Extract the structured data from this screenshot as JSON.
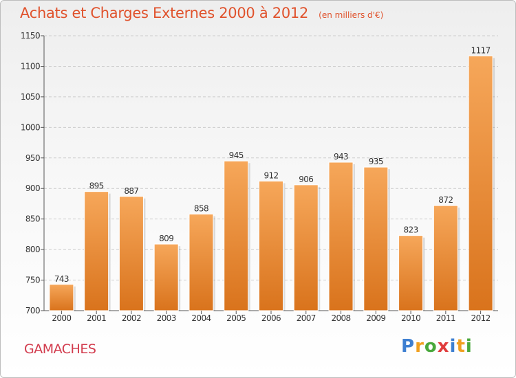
{
  "title": "Achats et Charges Externes 2000 à 2012",
  "unit": "(en milliers d'€)",
  "town": "GAMACHES",
  "logo": {
    "text": "Proxiti",
    "letters": [
      {
        "ch": "P",
        "color": "#3d7fd1"
      },
      {
        "ch": "r",
        "color": "#f0a020"
      },
      {
        "ch": "o",
        "color": "#49a83c"
      },
      {
        "ch": "x",
        "color": "#e03c3c"
      },
      {
        "ch": "i",
        "color": "#3d7fd1"
      },
      {
        "ch": "t",
        "color": "#f0a020"
      },
      {
        "ch": "i",
        "color": "#49a83c"
      }
    ]
  },
  "colors": {
    "title": "#e0522c",
    "town": "#d23b4d",
    "bar_top": "#f6a75a",
    "bar_bottom": "#d9731c",
    "grid": "#cccccc"
  },
  "chart_data": {
    "type": "bar",
    "categories": [
      "2000",
      "2001",
      "2002",
      "2003",
      "2004",
      "2005",
      "2006",
      "2007",
      "2008",
      "2009",
      "2010",
      "2011",
      "2012"
    ],
    "values": [
      743,
      895,
      887,
      809,
      858,
      945,
      912,
      906,
      943,
      935,
      823,
      872,
      1117
    ],
    "data_labels": [
      "743",
      "895",
      "887",
      "809",
      "858",
      "945",
      "912",
      "906",
      "943",
      "935",
      "823",
      "872",
      "1117"
    ],
    "ylim": [
      700,
      1150
    ],
    "yticks": [
      700,
      750,
      800,
      850,
      900,
      950,
      1000,
      1050,
      1100,
      1150
    ],
    "grid": true,
    "xlabel": "",
    "ylabel": ""
  }
}
